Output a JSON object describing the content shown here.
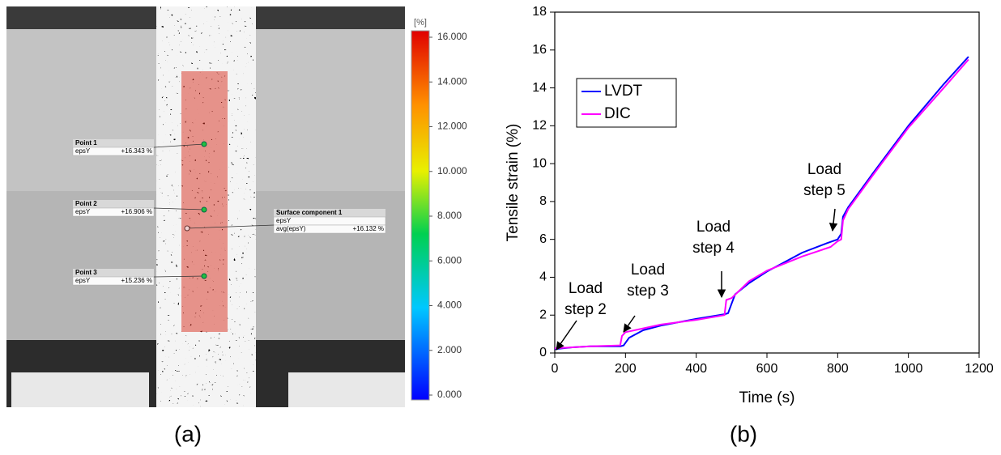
{
  "image_panel": {
    "colorbar": {
      "unit": "[%]",
      "lim": [
        0,
        16
      ],
      "ticks": [
        {
          "value": 0,
          "label": "0.000"
        },
        {
          "value": 2,
          "label": "2.000"
        },
        {
          "value": 4,
          "label": "4.000"
        },
        {
          "value": 6,
          "label": "6.000"
        },
        {
          "value": 8,
          "label": "8.000"
        },
        {
          "value": 10,
          "label": "10.000"
        },
        {
          "value": 12,
          "label": "12.000"
        },
        {
          "value": 14,
          "label": "14.000"
        },
        {
          "value": 16,
          "label": "16.000"
        }
      ]
    },
    "points": [
      {
        "name": "Point 1",
        "quantity": "epsY",
        "reading": "+16.343 %"
      },
      {
        "name": "Point 2",
        "quantity": "epsY",
        "reading": "+16.906 %"
      },
      {
        "name": "Point 3",
        "quantity": "epsY",
        "reading": "+15.236 %"
      }
    ],
    "surface": {
      "name": "Surface component 1",
      "quantity": "epsY",
      "avg_name": "avg(epsY)",
      "avg_reading": "+16.132 %"
    }
  },
  "panel_labels": [
    "(a)",
    "(b)"
  ],
  "chart_data": {
    "type": "line",
    "xlabel": "Time (s)",
    "ylabel": "Tensile strain (%)",
    "xlim": [
      0,
      1200
    ],
    "ylim": [
      0,
      18
    ],
    "xticks": [
      0,
      200,
      400,
      600,
      800,
      1000,
      1200
    ],
    "yticks": [
      0,
      2,
      4,
      6,
      8,
      10,
      12,
      14,
      16,
      18
    ],
    "legend": "upper left",
    "series": [
      {
        "name": "LVDT",
        "color": "#0000ff",
        "x": [
          0,
          50,
          100,
          185,
          195,
          210,
          250,
          300,
          400,
          480,
          490,
          500,
          510,
          550,
          600,
          650,
          700,
          770,
          800,
          810,
          815,
          830,
          900,
          1000,
          1100,
          1170
        ],
        "values": [
          0.2,
          0.3,
          0.35,
          0.35,
          0.4,
          0.8,
          1.2,
          1.45,
          1.8,
          2.05,
          2.1,
          2.6,
          3.1,
          3.7,
          4.3,
          4.8,
          5.3,
          5.8,
          6.0,
          6.3,
          7.2,
          7.7,
          9.5,
          12.0,
          14.2,
          15.65
        ]
      },
      {
        "name": "DIC",
        "color": "#ff00ff",
        "x": [
          0,
          50,
          100,
          185,
          190,
          200,
          250,
          300,
          400,
          480,
          485,
          500,
          550,
          600,
          700,
          780,
          800,
          810,
          815,
          830,
          900,
          1000,
          1100,
          1170
        ],
        "values": [
          0.25,
          0.3,
          0.35,
          0.4,
          0.9,
          1.1,
          1.3,
          1.5,
          1.75,
          2.0,
          2.8,
          2.9,
          3.8,
          4.35,
          5.1,
          5.6,
          5.9,
          6.0,
          7.0,
          7.6,
          9.4,
          11.9,
          14.0,
          15.5
        ]
      }
    ],
    "annotations": [
      {
        "lines": [
          "Load",
          "step 2"
        ]
      },
      {
        "lines": [
          "Load",
          "step 3"
        ]
      },
      {
        "lines": [
          "Load",
          "step 4"
        ]
      },
      {
        "lines": [
          "Load",
          "step 5"
        ]
      }
    ]
  }
}
